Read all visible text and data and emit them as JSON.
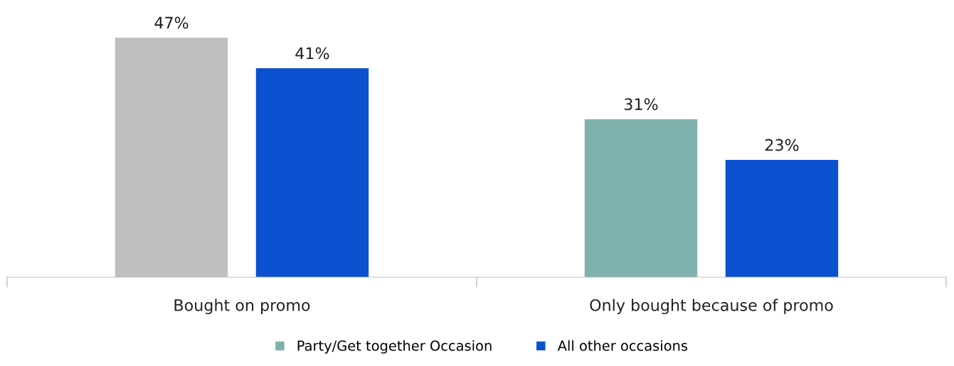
{
  "chart_data": {
    "type": "bar",
    "categories": [
      "Bought on promo",
      "Only bought because of promo"
    ],
    "series": [
      {
        "name": "Party/Get together Occasion",
        "color": "#7fb2ad",
        "colors": [
          "#bfbfbf",
          "#7fb2ad"
        ],
        "values": [
          47,
          31
        ],
        "value_labels": [
          "47%",
          "31%"
        ]
      },
      {
        "name": "All other occasions",
        "color": "#0b51d0",
        "values": [
          41,
          23
        ],
        "value_labels": [
          "41%",
          "23%"
        ]
      }
    ],
    "legend": "bottom",
    "grid": false
  }
}
